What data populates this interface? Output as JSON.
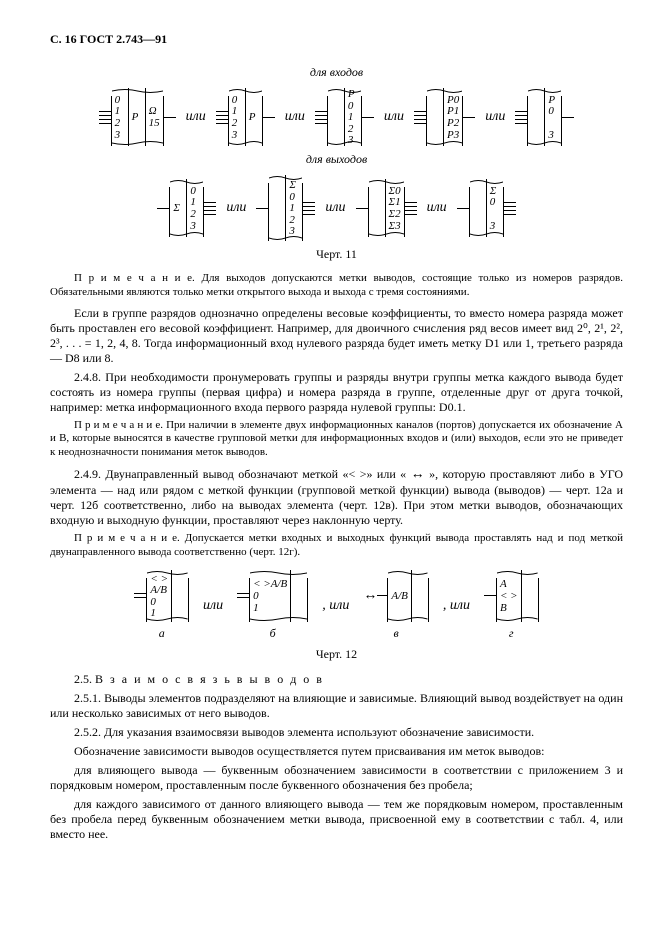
{
  "header": "С. 16 ГОСТ 2.743—91",
  "fig11": {
    "top_label": "для входов",
    "bot_label": "для выходов",
    "or": "или",
    "caption": "Черт. 11",
    "row_in": [
      {
        "left_pins": 4,
        "left_col": [
          "0",
          "1",
          "2",
          "3"
        ],
        "mid": "P",
        "right_col": [
          "Ω",
          "15"
        ],
        "right_pins": 1
      },
      {
        "left_pins": 4,
        "left_col": [
          "0",
          "1",
          "2",
          "3"
        ],
        "mid": "",
        "right_col": [
          "P"
        ],
        "right_pins": 1
      },
      {
        "left_pins": 4,
        "left_col": [],
        "mid": "",
        "right_col": [
          "P",
          "0",
          "1",
          "2",
          "3"
        ],
        "right_pins": 1
      },
      {
        "left_pins": 4,
        "left_col": [],
        "mid": "",
        "right_col": [
          "P0",
          "P1",
          "P2",
          "P3"
        ],
        "right_pins": 1
      },
      {
        "left_pins": 4,
        "left_col": [],
        "mid": "",
        "right_col": [
          "P",
          "0",
          "",
          "3"
        ],
        "right_pins": 1
      }
    ],
    "row_out": [
      {
        "left_pins": 1,
        "left_col": [
          "Σ"
        ],
        "mid": "",
        "right_col": [
          "0",
          "1",
          "2",
          "3"
        ],
        "right_pins": 4
      },
      {
        "left_pins": 1,
        "left_col": [
          ""
        ],
        "mid": "",
        "right_col": [
          "Σ",
          "0",
          "1",
          "2",
          "3"
        ],
        "right_pins": 4,
        "sep": true
      },
      {
        "left_pins": 1,
        "left_col": [
          ""
        ],
        "mid": "",
        "right_col": [
          "Σ0",
          "Σ1",
          "Σ2",
          "Σ3"
        ],
        "right_pins": 4
      },
      {
        "left_pins": 1,
        "left_col": [
          ""
        ],
        "mid": "",
        "right_col": [
          "Σ",
          "0",
          "",
          "3"
        ],
        "right_pins": 4
      }
    ]
  },
  "body": {
    "note1": "П р и м е ч а н и е.  Для выходов допускаются метки выводов, состоящие только из номеров разрядов. Обязательными являются только метки открытого выхода и выхода с тремя состояниями.",
    "p1": "Если в группе разрядов однозначно определены весовые коэффициенты, то вместо номера разряда может быть проставлен его весовой коэффициент. Например, для двоичного счисления ряд весов имеет вид 2⁰, 2¹, 2², 2³, . . . = 1, 2, 4, 8.  Тогда информационный вход нулевого разряда будет иметь метку D1 или 1, третьего разряда — D8 или 8.",
    "p2": "2.4.8. При необходимости пронумеровать группы и разряды внутри группы метка каждого вывода будет состоять из номера группы (первая цифра) и номера разряда в группе, отделенные друг от друга точкой, например: метка информационного входа первого разряда нулевой группы: D0.1.",
    "note2": "П р и м е ч а н и е.  При наличии в элементе двух информационных каналов (портов) допускается их обозначение A и B, которые выносятся в качестве групповой метки для информационных входов и (или) выходов, если это не приведет к неоднозначности понимания меток выводов.",
    "p3a": "2.4.9. Двунаправленный вывод обозначают меткой «< >» или «",
    "p3b": "», которую проставляют либо в УГО элемента — над или рядом с меткой функции (групповой меткой функции) вывода (выводов) — черт. 12а и черт. 12б соответственно, либо на выводах элемента (черт. 12в). При этом метки выводов, обозначающих входную и выходную функции, проставляют через наклонную черту.",
    "note3": "П р и м е ч а н и е.  Допускается метки входных и выходных функций вывода проставлять над и под меткой двунаправленного вывода соответственно (черт. 12г).",
    "arrow": "↔"
  },
  "fig12": {
    "caption": "Черт. 12",
    "or": "или",
    "comma_or": ", или",
    "items": [
      {
        "pins": 2,
        "lines": [
          "< >",
          "A/B",
          "0",
          "1"
        ],
        "sub": "а"
      },
      {
        "pins": 2,
        "lines": [
          "< >A/B",
          "0",
          "1"
        ],
        "sub": "б",
        "sep": true
      },
      {
        "pins": 1,
        "lines": [
          "A/B"
        ],
        "sub": "в",
        "arrow": true
      },
      {
        "pins": 1,
        "lines": [
          "A",
          "< >",
          "B"
        ],
        "sub": "г"
      }
    ]
  },
  "tail": {
    "t1a": "2.5. ",
    "t1b": "В з а и м о с в я з ь   в ы в о д о в",
    "t2": "2.5.1. Выводы элементов подразделяют на влияющие и зависимые. Влияющий вывод воздействует на один или несколько зависимых от него выводов.",
    "t3": "2.5.2. Для указания взаимосвязи выводов элемента используют обозначение зависимости.",
    "t4": "Обозначение зависимости выводов осуществляется путем присваивания им меток выводов:",
    "t5": "для влияющего вывода — буквенным обозначением зависимости в соответствии с приложением 3 и порядковым номером, проставленным после буквенного обозначения без пробела;",
    "t6": "для каждого зависимого от данного влияющего вывода — тем же порядковым номером, проставленным без пробела перед буквенным обозначением метки вывода, присвоенной ему в соответствии с табл. 4, или вместо нее."
  }
}
